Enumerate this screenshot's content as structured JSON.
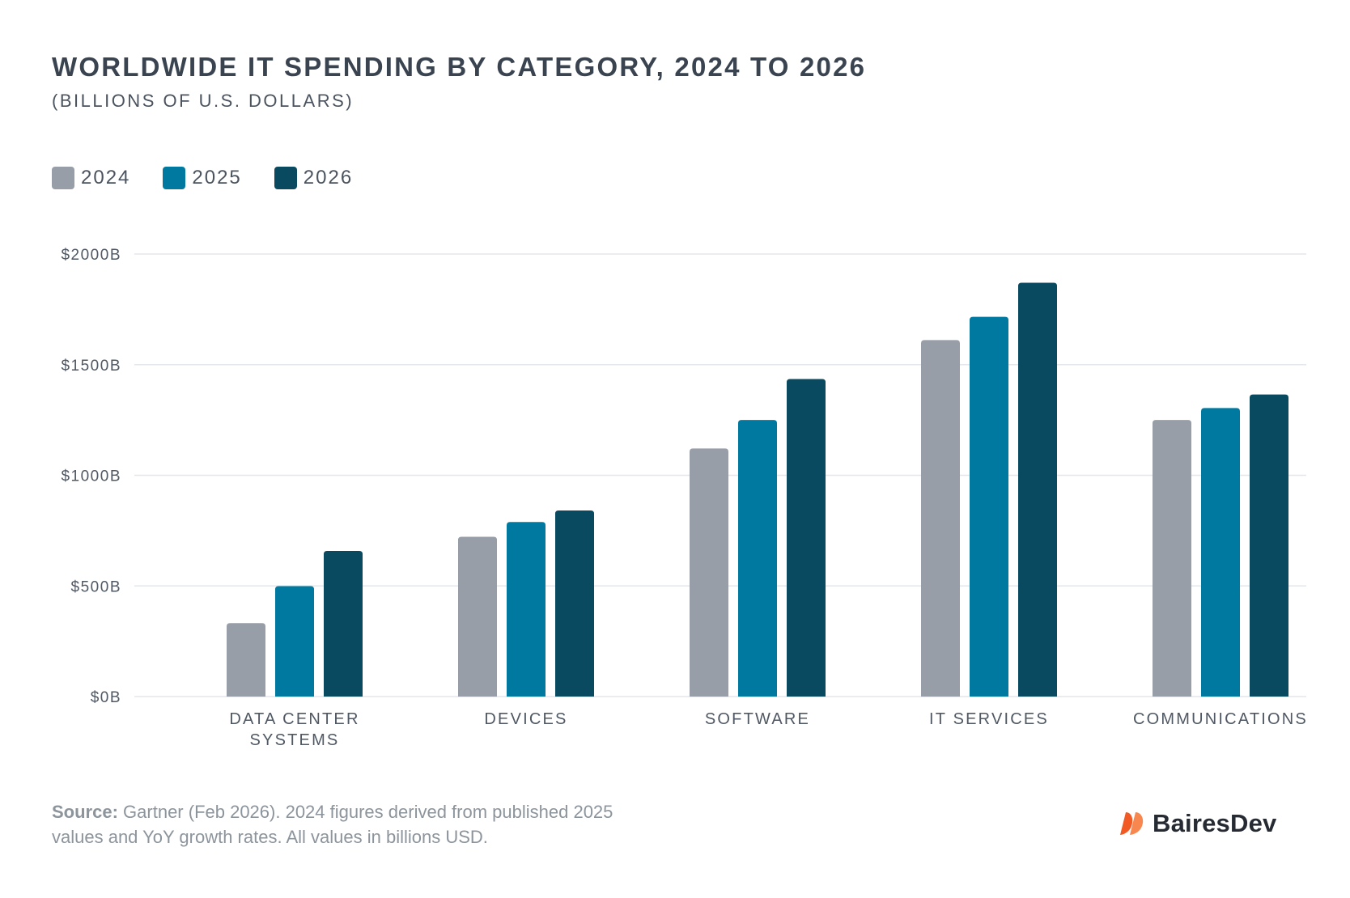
{
  "header": {
    "title": "WORLDWIDE IT SPENDING BY CATEGORY, 2024 TO 2026",
    "subtitle": "(BILLIONS OF U.S. DOLLARS)"
  },
  "colors": {
    "series_2024": "#979ea7",
    "series_2025": "#0079a0",
    "series_2026": "#0a4a60",
    "grid": "#e3e6ea",
    "axis_text": "#4f5863",
    "logo_accent": "#f15a24"
  },
  "chart_data": {
    "type": "bar",
    "categories": [
      [
        "DATA CENTER",
        "SYSTEMS"
      ],
      [
        "DEVICES"
      ],
      [
        "SOFTWARE"
      ],
      [
        "IT SERVICES"
      ],
      [
        "COMMUNICATIONS"
      ]
    ],
    "series": [
      {
        "name": "2024",
        "values": [
          332,
          722,
          1121,
          1611,
          1250
        ]
      },
      {
        "name": "2025",
        "values": [
          499,
          789,
          1250,
          1716,
          1304
        ]
      },
      {
        "name": "2026",
        "values": [
          658,
          841,
          1435,
          1870,
          1365
        ]
      }
    ],
    "yticks": [
      0,
      500,
      1000,
      1500,
      2000
    ],
    "ytick_labels": [
      "$0B",
      "$500B",
      "$1000B",
      "$1500B",
      "$2000B"
    ],
    "ylim": [
      0,
      2000
    ],
    "legend_position": "top-left",
    "grid": true
  },
  "footer": {
    "source_label": "Source:",
    "source_text": "Gartner (Feb 2026). 2024 figures derived from published 2025 values and YoY growth rates. All values in billions USD.",
    "logo_text": "BairesDev",
    "logo_icon": "bairesdev-logo-icon"
  }
}
